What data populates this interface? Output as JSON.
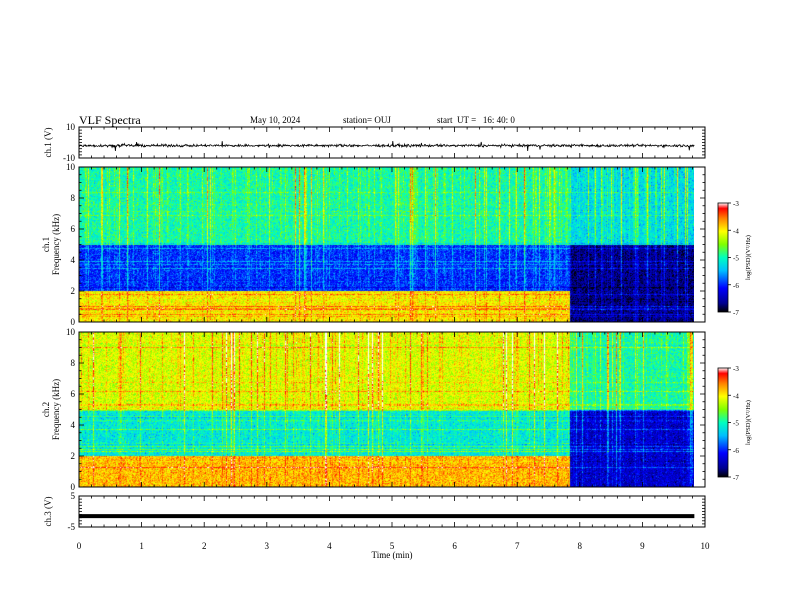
{
  "header": {
    "title": "VLF Spectra",
    "date": "May 10, 2024",
    "station": "station= OUJ",
    "start_ut": "start  UT =   16: 40: 0"
  },
  "colors": {
    "colormap": [
      "#000000",
      "#00008f",
      "#0000ff",
      "#00bfff",
      "#00ffbf",
      "#7fff00",
      "#ffff00",
      "#ff8000",
      "#ff0000",
      "#ffffff"
    ]
  },
  "chart_data": [
    {
      "type": "line",
      "panel": "ch1",
      "ylabel": "ch.1 (V)",
      "yticks": [
        "10",
        "-10"
      ],
      "ylim": [
        -10,
        10
      ],
      "x_range_min": [
        0,
        9.83
      ],
      "values_summary": "noise trace centered near -2 V, amplitude about ±1 V, occasional spikes"
    },
    {
      "type": "heatmap",
      "panel": "ch1-spectrogram",
      "ylabel": "ch.1\nFrequency (kHz)",
      "yticks": [
        "0",
        "2",
        "4",
        "6",
        "8",
        "10"
      ],
      "ylim_khz": [
        0,
        10
      ],
      "x_range_min": [
        0,
        9.83
      ],
      "colorbar": {
        "label": "log(PSD)(V²/Hz)",
        "ticks": [
          "-3",
          "-4",
          "-5",
          "-6",
          "-7"
        ],
        "range": [
          -7,
          -3
        ]
      },
      "features": [
        {
          "t_min": [
            0,
            7.85
          ],
          "band_khz": [
            0,
            2
          ],
          "level": -4.0
        },
        {
          "t_min": [
            0,
            7.85
          ],
          "band_khz": [
            2,
            5
          ],
          "level": -6.0
        },
        {
          "t_min": [
            0,
            7.85
          ],
          "band_khz": [
            5,
            10
          ],
          "level": -5.0
        },
        {
          "t_min": [
            7.85,
            9.83
          ],
          "band_khz": [
            0,
            5
          ],
          "level": -6.7
        },
        {
          "t_min": [
            7.85,
            9.83
          ],
          "band_khz": [
            5,
            10
          ],
          "level": -5.3
        }
      ]
    },
    {
      "type": "heatmap",
      "panel": "ch2-spectrogram",
      "ylabel": "ch.2\nFrequency (kHz)",
      "yticks": [
        "0",
        "2",
        "4",
        "6",
        "8",
        "10"
      ],
      "ylim_khz": [
        0,
        10
      ],
      "x_range_min": [
        0,
        9.83
      ],
      "colorbar": {
        "label": "log(PSD)(V²/Hz)",
        "ticks": [
          "-3",
          "-4",
          "-5",
          "-6",
          "-7"
        ],
        "range": [
          -7,
          -3
        ]
      },
      "features": [
        {
          "t_min": [
            0,
            7.85
          ],
          "band_khz": [
            0,
            2
          ],
          "level": -3.8
        },
        {
          "t_min": [
            0,
            7.85
          ],
          "band_khz": [
            2,
            5
          ],
          "level": -5.2
        },
        {
          "t_min": [
            0,
            7.85
          ],
          "band_khz": [
            5,
            10
          ],
          "level": -4.2
        },
        {
          "t_min": [
            7.85,
            9.83
          ],
          "band_khz": [
            0,
            5
          ],
          "level": -6.4
        },
        {
          "t_min": [
            7.85,
            9.83
          ],
          "band_khz": [
            5,
            10
          ],
          "level": -5.0
        }
      ]
    },
    {
      "type": "line",
      "panel": "ch3",
      "ylabel": "ch.3 (V)",
      "yticks": [
        "5",
        "-5"
      ],
      "ylim": [
        -5,
        5
      ],
      "x_range_min": [
        0,
        9.83
      ],
      "values_summary": "flat line at about -1.5 V"
    }
  ],
  "xaxis": {
    "label": "Time  (min)",
    "ticks": [
      "0",
      "1",
      "2",
      "3",
      "4",
      "5",
      "6",
      "7",
      "8",
      "9",
      "10"
    ],
    "xlim": [
      0,
      10
    ]
  }
}
